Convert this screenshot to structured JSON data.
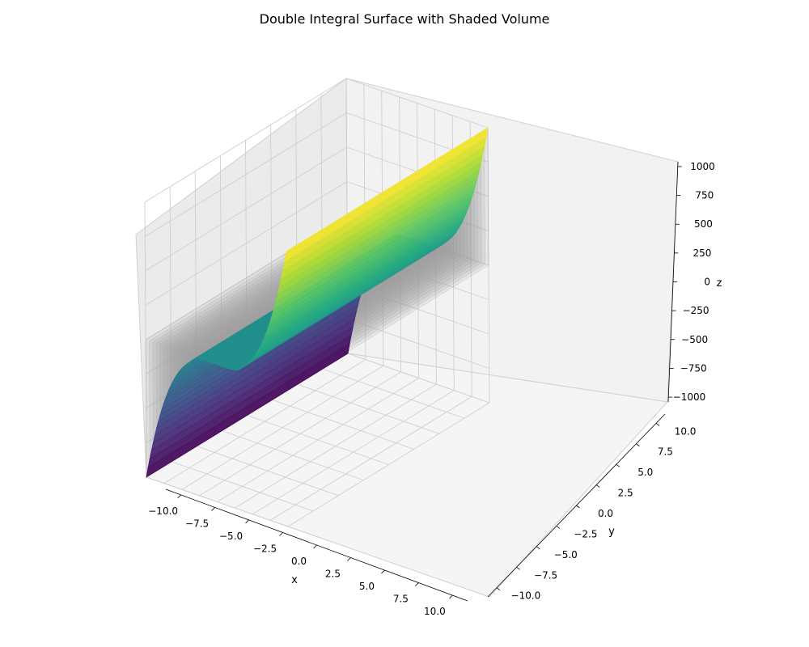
{
  "chart_data": {
    "type": "surface3d",
    "title": "Double Integral Surface with Shaded Volume",
    "xlabel": "x",
    "ylabel": "y",
    "zlabel": "z",
    "xlim": [
      -10,
      10
    ],
    "ylim": [
      -10,
      10
    ],
    "zlim": [
      -1000,
      1000
    ],
    "x_ticks": [
      "−10.0",
      "−7.5",
      "−5.0",
      "−2.5",
      "0.0",
      "2.5",
      "5.0",
      "7.5",
      "10.0"
    ],
    "y_ticks": [
      "−10.0",
      "−7.5",
      "−5.0",
      "−2.5",
      "0.0",
      "2.5",
      "5.0",
      "7.5",
      "10.0"
    ],
    "z_ticks": [
      "−1000",
      "−750",
      "−500",
      "−250",
      "0",
      "250",
      "500",
      "750",
      "1000"
    ],
    "grid": true,
    "colormap": "viridis",
    "shaded_volume_color": "#9e9e9e",
    "surface_samples": {
      "x": [
        -10,
        -5,
        -2.5,
        0,
        2.5,
        5,
        10
      ],
      "z_at_y0": [
        -1000,
        -150,
        0,
        0,
        0,
        150,
        1000
      ]
    }
  }
}
